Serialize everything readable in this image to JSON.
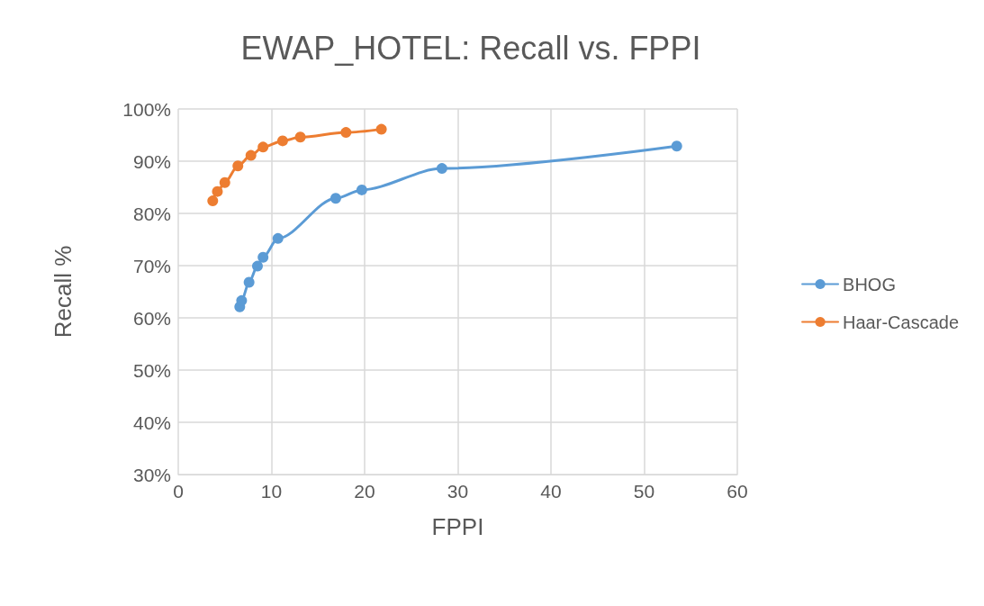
{
  "chart_data": {
    "type": "line",
    "title": "EWAP_HOTEL: Recall vs. FPPI",
    "xlabel": "FPPI",
    "ylabel": "Recall %",
    "xlim": [
      0,
      60
    ],
    "xticks": [
      0,
      10,
      20,
      30,
      40,
      50,
      60
    ],
    "ylim": [
      30,
      100
    ],
    "yticks": [
      {
        "value": 30,
        "label": "30%"
      },
      {
        "value": 40,
        "label": "40%"
      },
      {
        "value": 50,
        "label": "50%"
      },
      {
        "value": 60,
        "label": "60%"
      },
      {
        "value": 70,
        "label": "70%"
      },
      {
        "value": 80,
        "label": "80%"
      },
      {
        "value": 90,
        "label": "90%"
      },
      {
        "value": 100,
        "label": "100%"
      }
    ],
    "grid": true,
    "legend": "right",
    "marker": "circle",
    "series": [
      {
        "name": "BHOG",
        "color": "#5b9bd5",
        "x": [
          6.6,
          6.8,
          7.6,
          8.5,
          9.1,
          10.7,
          16.9,
          19.7,
          28.3,
          53.5
        ],
        "values": [
          62.1,
          63.3,
          66.8,
          69.9,
          71.6,
          75.2,
          82.9,
          84.5,
          88.6,
          92.9
        ]
      },
      {
        "name": "Haar-Cascade",
        "color": "#ed7d31",
        "x": [
          3.7,
          4.2,
          5.0,
          6.4,
          7.8,
          9.1,
          11.2,
          13.1,
          18.0,
          21.8
        ],
        "values": [
          82.4,
          84.2,
          85.9,
          89.1,
          91.1,
          92.7,
          93.9,
          94.6,
          95.5,
          96.1
        ]
      }
    ]
  }
}
